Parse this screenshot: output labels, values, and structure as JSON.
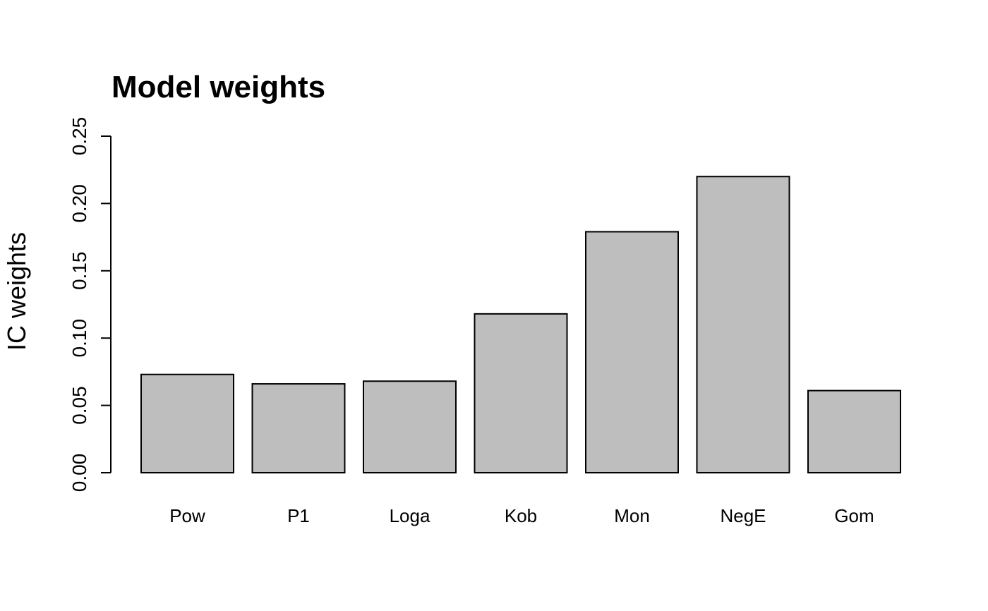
{
  "colors": {
    "bar_fill": "#bebebe",
    "bar_stroke": "#000000",
    "background": "#ffffff"
  },
  "chart_data": {
    "type": "bar",
    "title": "Model weights",
    "xlabel": "",
    "ylabel": "IC weights",
    "ylim": [
      0,
      0.25
    ],
    "yticks": [
      "0.00",
      "0.05",
      "0.10",
      "0.15",
      "0.20",
      "0.25"
    ],
    "categories": [
      "Pow",
      "P1",
      "Loga",
      "Kob",
      "Mon",
      "NegE",
      "Gom"
    ],
    "values": [
      0.073,
      0.066,
      0.068,
      0.118,
      0.179,
      0.22,
      0.061
    ],
    "grid": false,
    "legend": "none"
  }
}
